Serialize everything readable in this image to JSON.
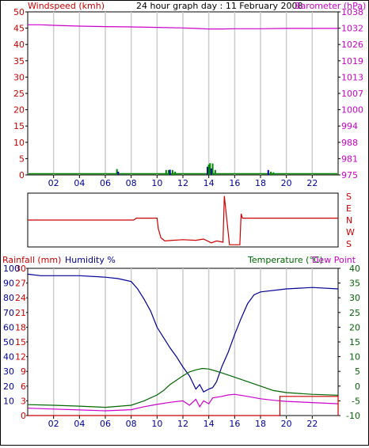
{
  "header": {
    "title": "24 hour graph day : 11 February 2008",
    "left_label": "Windspeed (kmh)",
    "right_label": "Barometer (hPa)"
  },
  "bottom_header": {
    "rainfall_label": "Rainfall (mm)",
    "humidity_label": "Humidity %",
    "temperature_label": "Temperature (°C)",
    "dewpoint_label": "Dew Point"
  },
  "colors": {
    "wind": "#cc0000",
    "barometer": "#cc00cc",
    "humidity": "#000099",
    "temperature": "#006600",
    "dewpoint": "#cc00cc",
    "rain": "#cc0000",
    "direction": "#cc0000",
    "grid": "#cccccc",
    "wind_bars_green": "#008800",
    "wind_bars_blue": "#0000aa"
  },
  "chart_data": [
    {
      "type": "line",
      "panel": "wind-barometer",
      "title": "24 hour graph day : 11 February 2008",
      "ylabel": "Windspeed (kmh)",
      "y2label": "Barometer (hPa)",
      "ylim": [
        0,
        50
      ],
      "y_ticks": [
        "0",
        "5",
        "10",
        "15",
        "20",
        "25",
        "30",
        "35",
        "40",
        "45",
        "50"
      ],
      "y2lim": [
        975,
        1038
      ],
      "y2_ticks": [
        "975",
        "981",
        "988",
        "994",
        "1000",
        "1007",
        "1013",
        "1019",
        "1026",
        "1032",
        "1038"
      ],
      "xlim": [
        0,
        24
      ],
      "x_ticks": [
        2,
        4,
        6,
        8,
        10,
        12,
        14,
        16,
        18,
        20,
        22
      ],
      "x_tick_labels": [
        "02",
        "04",
        "06",
        "08",
        "10",
        "12",
        "14",
        "16",
        "18",
        "20",
        "22"
      ],
      "grid": true,
      "series": [
        {
          "axis": "right",
          "color_key": "barometer",
          "x": [
            0,
            1,
            2,
            4,
            6,
            8,
            10,
            12,
            13,
            14,
            15,
            16,
            18,
            20,
            22,
            24
          ],
          "y": [
            1033.0,
            1033.0,
            1032.8,
            1032.5,
            1032.3,
            1032.2,
            1032.0,
            1031.8,
            1031.6,
            1031.4,
            1031.4,
            1031.5,
            1031.5,
            1031.6,
            1031.6,
            1031.6
          ]
        },
        {
          "axis": "left",
          "style": "bars",
          "x": [
            6.9,
            7.0,
            10.7,
            10.9,
            11.0,
            11.2,
            11.4,
            13.9,
            14.0,
            14.1,
            14.2,
            14.3,
            14.5,
            18.6,
            18.8,
            19.0
          ],
          "y": [
            1.8,
            1.0,
            1.5,
            1.5,
            1.6,
            1.5,
            1.0,
            2.5,
            3.2,
            3.6,
            2.0,
            3.5,
            1.5,
            1.5,
            1.0,
            0.8
          ]
        }
      ]
    },
    {
      "type": "line",
      "panel": "wind-direction",
      "y_ticks": [
        "S",
        "E",
        "N",
        "W",
        "S"
      ],
      "ylim": [
        0,
        4
      ],
      "xlim": [
        0,
        24
      ],
      "series": [
        {
          "color_key": "direction",
          "x": [
            0,
            8.2,
            8.4,
            10.0,
            10.1,
            10.3,
            10.6,
            11.2,
            12.0,
            13.0,
            13.6,
            14.2,
            14.6,
            15.1,
            15.2,
            15.6,
            16.4,
            16.5,
            16.6,
            24
          ],
          "y": [
            2.0,
            2.0,
            2.15,
            2.15,
            1.3,
            0.6,
            0.35,
            0.4,
            0.45,
            0.4,
            0.5,
            0.2,
            0.35,
            0.25,
            3.9,
            0.05,
            0.05,
            2.5,
            2.15,
            2.15
          ]
        }
      ]
    },
    {
      "type": "line",
      "panel": "rain-humidity-temperature",
      "ylabel": "Rainfall (mm)",
      "y2label": "Temperature (°C)",
      "rain_ticks": [
        "0",
        "3",
        "6",
        "9",
        "12",
        "15",
        "18",
        "21",
        "24",
        "27",
        "30"
      ],
      "humidity_ticks": [
        "10",
        "20",
        "30",
        "40",
        "50",
        "60",
        "70",
        "80",
        "90",
        "100"
      ],
      "humidity_lim": [
        0,
        100
      ],
      "temperature_ticks": [
        "-10",
        "-5",
        "0",
        "5",
        "10",
        "15",
        "20",
        "25",
        "30",
        "35",
        "40"
      ],
      "temperature_lim": [
        -10,
        40
      ],
      "xlim": [
        0,
        24
      ],
      "x_ticks": [
        2,
        4,
        6,
        8,
        10,
        12,
        14,
        16,
        18,
        20,
        22
      ],
      "x_tick_labels": [
        "02",
        "04",
        "06",
        "08",
        "10",
        "12",
        "14",
        "16",
        "18",
        "20",
        "22"
      ],
      "grid": true,
      "series": [
        {
          "axis": "humidity",
          "color_key": "humidity",
          "x": [
            0,
            1,
            2,
            4,
            6,
            7,
            8,
            8.5,
            9,
            9.5,
            10,
            10.5,
            11,
            11.5,
            12,
            12.5,
            13,
            13.3,
            13.6,
            14,
            14.3,
            14.6,
            15,
            15.5,
            16,
            16.5,
            17,
            17.5,
            18,
            20,
            22,
            24
          ],
          "y": [
            96,
            95,
            95,
            95,
            94,
            93,
            91,
            86,
            79,
            71,
            60,
            53,
            46,
            40,
            33,
            27,
            18,
            21,
            16,
            18,
            19,
            23,
            33,
            43,
            55,
            66,
            76,
            82,
            84,
            86,
            87,
            86
          ]
        },
        {
          "axis": "temperature",
          "color_key": "temperature",
          "x": [
            0,
            2,
            4,
            6,
            8,
            9,
            10,
            10.5,
            11,
            11.5,
            12,
            12.5,
            13,
            13.5,
            14,
            14.5,
            15,
            16,
            17,
            18,
            19,
            20,
            22,
            24
          ],
          "y": [
            -6.3,
            -6.5,
            -6.8,
            -7.2,
            -6.5,
            -5,
            -3,
            -1.5,
            0.5,
            2,
            3.5,
            4.8,
            5.5,
            6,
            5.8,
            5.2,
            4.5,
            3,
            1.5,
            0,
            -1.5,
            -2.2,
            -2.8,
            -3.1
          ]
        },
        {
          "axis": "temperature",
          "color_key": "dewpoint",
          "x": [
            0,
            2,
            4,
            6,
            8,
            9,
            10,
            11,
            12,
            12.5,
            13,
            13.3,
            13.6,
            14,
            14.3,
            15,
            15.5,
            16,
            17,
            18,
            19,
            20,
            22,
            24
          ],
          "y": [
            -7.5,
            -7.8,
            -8.1,
            -8.4,
            -8,
            -7,
            -6.2,
            -5.5,
            -5,
            -6.5,
            -4.5,
            -7,
            -5,
            -6,
            -4,
            -3.5,
            -3,
            -2.8,
            -3.5,
            -4.3,
            -4.8,
            -5.2,
            -5.6,
            -6
          ]
        },
        {
          "axis": "rain",
          "color_key": "rain",
          "style": "step",
          "x": [
            0,
            19.5,
            19.5,
            24,
            24
          ],
          "y": [
            0,
            0,
            3.9,
            3.9,
            0
          ]
        }
      ]
    }
  ]
}
